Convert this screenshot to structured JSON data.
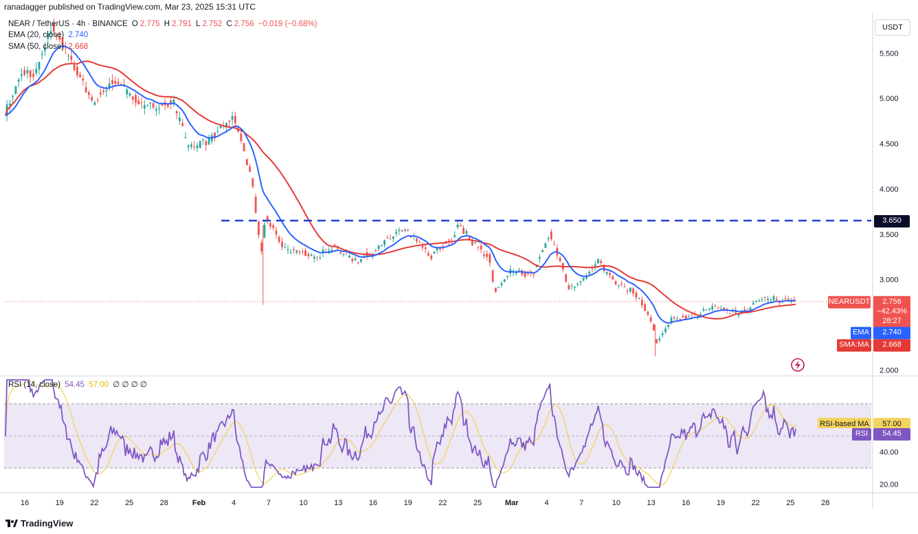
{
  "publisher": {
    "text": "ranadagger published on TradingView.com, Mar 23, 2025 15:31 UTC"
  },
  "legend": {
    "symbol": "NEAR / TetherUS · 4h · BINANCE",
    "o_label": "O",
    "o": "2.775",
    "h_label": "H",
    "h": "2.791",
    "l_label": "L",
    "l": "2.752",
    "c_label": "C",
    "c": "2.756",
    "change": "−0.019 (−0.68%)",
    "ema_label": "EMA (20, close)",
    "ema_value": "2.740",
    "sma_label": "SMA (50, close)",
    "sma_value": "2.668",
    "rsi_label": "RSI (14, close)",
    "rsi_value": "54.45",
    "rsi_ma_value": "57.00",
    "rsi_extra": "∅ ∅ ∅ ∅"
  },
  "currency_button": "USDT",
  "brand": "TradingView",
  "colors": {
    "up": "#26a69a",
    "down": "#ef5350",
    "ema": "#2962ff",
    "sma": "#e53935",
    "rsi": "#7e57c2",
    "rsi_ma": "#f4d35e",
    "resistance": "#1f3fd6",
    "rsi_band": "#ede7f6"
  },
  "icons": [
    "tradingview-logo-icon",
    "lightning-icon"
  ],
  "chart_data": [
    {
      "type": "candlestick",
      "title": "NEAR / TetherUS · 4h · BINANCE",
      "yaxis": {
        "ticks": [
          "2.000",
          "3.000",
          "3.500",
          "4.000",
          "4.500",
          "5.000",
          "5.500"
        ],
        "ylim": [
          1.95,
          5.95
        ]
      },
      "xaxis": {
        "ticks": [
          "16",
          "19",
          "22",
          "25",
          "28",
          "Feb",
          "4",
          "7",
          "10",
          "13",
          "16",
          "19",
          "22",
          "25",
          "Mar",
          "4",
          "7",
          "10",
          "13",
          "16",
          "19",
          "22",
          "25",
          "28"
        ]
      },
      "price_path": [
        [
          0,
          4.85
        ],
        [
          12,
          5.3
        ],
        [
          20,
          5.25
        ],
        [
          32,
          5.8
        ],
        [
          44,
          5.45
        ],
        [
          60,
          4.95
        ],
        [
          75,
          5.2
        ],
        [
          95,
          4.9
        ],
        [
          115,
          4.95
        ],
        [
          125,
          4.45
        ],
        [
          140,
          4.55
        ],
        [
          150,
          4.7
        ],
        [
          155,
          4.8
        ],
        [
          160,
          4.6
        ],
        [
          168,
          4.1
        ],
        [
          175,
          3.3
        ],
        [
          178,
          3.7
        ],
        [
          190,
          3.35
        ],
        [
          210,
          3.25
        ],
        [
          225,
          3.35
        ],
        [
          240,
          3.2
        ],
        [
          255,
          3.35
        ],
        [
          270,
          3.55
        ],
        [
          280,
          3.45
        ],
        [
          290,
          3.25
        ],
        [
          305,
          3.45
        ],
        [
          310,
          3.6
        ],
        [
          320,
          3.4
        ],
        [
          330,
          3.25
        ],
        [
          335,
          2.85
        ],
        [
          345,
          3.1
        ],
        [
          360,
          3.05
        ],
        [
          372,
          3.5
        ],
        [
          378,
          3.25
        ],
        [
          385,
          2.9
        ],
        [
          398,
          3.05
        ],
        [
          405,
          3.2
        ],
        [
          415,
          3.0
        ],
        [
          430,
          2.85
        ],
        [
          440,
          2.6
        ],
        [
          445,
          2.3
        ],
        [
          455,
          2.55
        ],
        [
          470,
          2.6
        ],
        [
          485,
          2.7
        ],
        [
          500,
          2.62
        ],
        [
          510,
          2.7
        ],
        [
          515,
          2.8
        ],
        [
          540,
          2.76
        ]
      ],
      "ema_20": {
        "last": 2.74
      },
      "sma_50": {
        "last": 2.668
      },
      "resistance": {
        "value": 3.65,
        "label": "3.650",
        "style": "dashed"
      },
      "price_tag": {
        "label": "NEARUSDT",
        "value": "2.756",
        "change": "−42.43%",
        "countdown": "28:27"
      },
      "ema_tag": {
        "label": "EMA",
        "value": "2.740"
      },
      "sma_tag": {
        "label": "SMA:MA",
        "value": "2.668"
      }
    },
    {
      "type": "line",
      "title": "RSI (14, close)",
      "yaxis": {
        "ticks": [
          "20.00",
          "40.00"
        ],
        "ylim": [
          15,
          87
        ],
        "band": [
          30,
          70
        ]
      },
      "series": [
        {
          "name": "RSI",
          "last": 54.45
        },
        {
          "name": "RSI-based MA",
          "last": 57.0
        }
      ],
      "rsi_tag": {
        "label": "RSI",
        "value": "54.45"
      },
      "rsi_ma_tag": {
        "label": "RSI-based MA",
        "value": "57.00"
      }
    }
  ]
}
